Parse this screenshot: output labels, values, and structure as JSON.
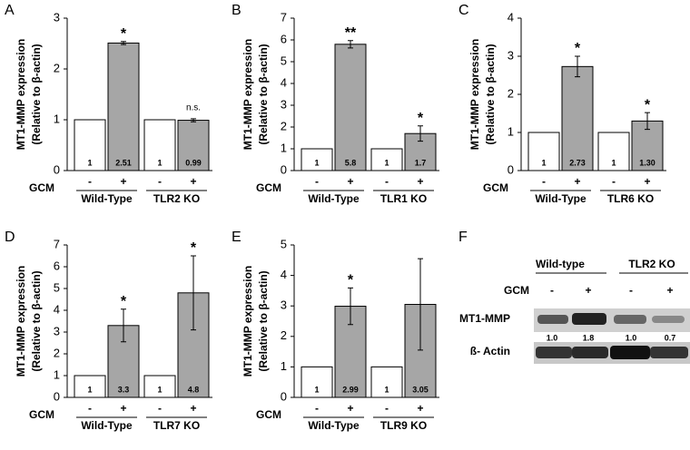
{
  "chart_data": [
    {
      "type": "bar",
      "panel": "A",
      "ylabel": [
        "MT1-MMP expression",
        "(Relative to β-actin)"
      ],
      "row_label": "GCM",
      "categories": [
        "-",
        "+",
        "-",
        "+"
      ],
      "groups": [
        "Wild-Type",
        "TLR2 KO"
      ],
      "values": [
        1,
        2.51,
        1,
        0.99
      ],
      "errors": [
        null,
        0.03,
        null,
        0.03
      ],
      "colors": [
        "#ffffff",
        "#a6a6a6",
        "#ffffff",
        "#a6a6a6"
      ],
      "significance": [
        null,
        "*",
        null,
        "n.s."
      ],
      "ylim": [
        0,
        3
      ],
      "yticks": [
        0,
        1,
        2,
        3
      ]
    },
    {
      "type": "bar",
      "panel": "B",
      "ylabel": [
        "MT1-MMP expression",
        "(Relative to β-actin)"
      ],
      "row_label": "GCM",
      "categories": [
        "-",
        "+",
        "-",
        "+"
      ],
      "groups": [
        "Wild-Type",
        "TLR1 KO"
      ],
      "values": [
        1,
        5.8,
        1,
        1.7
      ],
      "errors": [
        null,
        0.17,
        null,
        0.35
      ],
      "colors": [
        "#ffffff",
        "#a6a6a6",
        "#ffffff",
        "#a6a6a6"
      ],
      "significance": [
        null,
        "**",
        null,
        "*"
      ],
      "ylim": [
        0,
        7
      ],
      "yticks": [
        0,
        1,
        2,
        3,
        4,
        5,
        6,
        7
      ]
    },
    {
      "type": "bar",
      "panel": "C",
      "ylabel": [
        "MT1-MMP expression",
        "(Relative to β-actin)"
      ],
      "row_label": "GCM",
      "categories": [
        "-",
        "+",
        "-",
        "+"
      ],
      "groups": [
        "Wild-Type",
        "TLR6 KO"
      ],
      "values": [
        1,
        2.73,
        1,
        1.3
      ],
      "value_labels": [
        "1",
        "2.73",
        "1",
        "1.30"
      ],
      "errors": [
        null,
        0.27,
        null,
        0.22
      ],
      "colors": [
        "#ffffff",
        "#a6a6a6",
        "#ffffff",
        "#a6a6a6"
      ],
      "significance": [
        null,
        "*",
        null,
        "*"
      ],
      "ylim": [
        0,
        4
      ],
      "yticks": [
        0,
        1,
        2,
        3,
        4
      ]
    },
    {
      "type": "bar",
      "panel": "D",
      "ylabel": [
        "MT1-MMP expression",
        "(Relative to β-actin)"
      ],
      "row_label": "GCM",
      "categories": [
        "-",
        "+",
        "-",
        "+"
      ],
      "groups": [
        "Wild-Type",
        "TLR7 KO"
      ],
      "values": [
        1,
        3.3,
        1,
        4.8
      ],
      "errors": [
        null,
        0.75,
        null,
        1.7
      ],
      "colors": [
        "#ffffff",
        "#a6a6a6",
        "#ffffff",
        "#a6a6a6"
      ],
      "significance": [
        null,
        "*",
        null,
        "*"
      ],
      "ylim": [
        0,
        7
      ],
      "yticks": [
        0,
        1,
        2,
        3,
        4,
        5,
        6,
        7
      ]
    },
    {
      "type": "bar",
      "panel": "E",
      "ylabel": [
        "MT1-MMP expression",
        "(Relative to β-actin)"
      ],
      "row_label": "GCM",
      "categories": [
        "-",
        "+",
        "-",
        "+"
      ],
      "groups": [
        "Wild-Type",
        "TLR9 KO"
      ],
      "values": [
        1,
        2.99,
        1,
        3.05
      ],
      "errors": [
        null,
        0.6,
        null,
        1.5
      ],
      "colors": [
        "#ffffff",
        "#a6a6a6",
        "#ffffff",
        "#a6a6a6"
      ],
      "significance": [
        null,
        "*",
        null,
        null
      ],
      "ylim": [
        0,
        5
      ],
      "yticks": [
        0,
        1,
        2,
        3,
        4,
        5
      ]
    }
  ],
  "blot": {
    "panel": "F",
    "groups": [
      "Wild-type",
      "TLR2 KO"
    ],
    "row_label": "GCM",
    "lanes": [
      "-",
      "+",
      "-",
      "+"
    ],
    "rows": [
      "MT1-MMP",
      "ß- Actin"
    ],
    "quantification": [
      "1.0",
      "1.8",
      "1.0",
      "0.7"
    ]
  }
}
